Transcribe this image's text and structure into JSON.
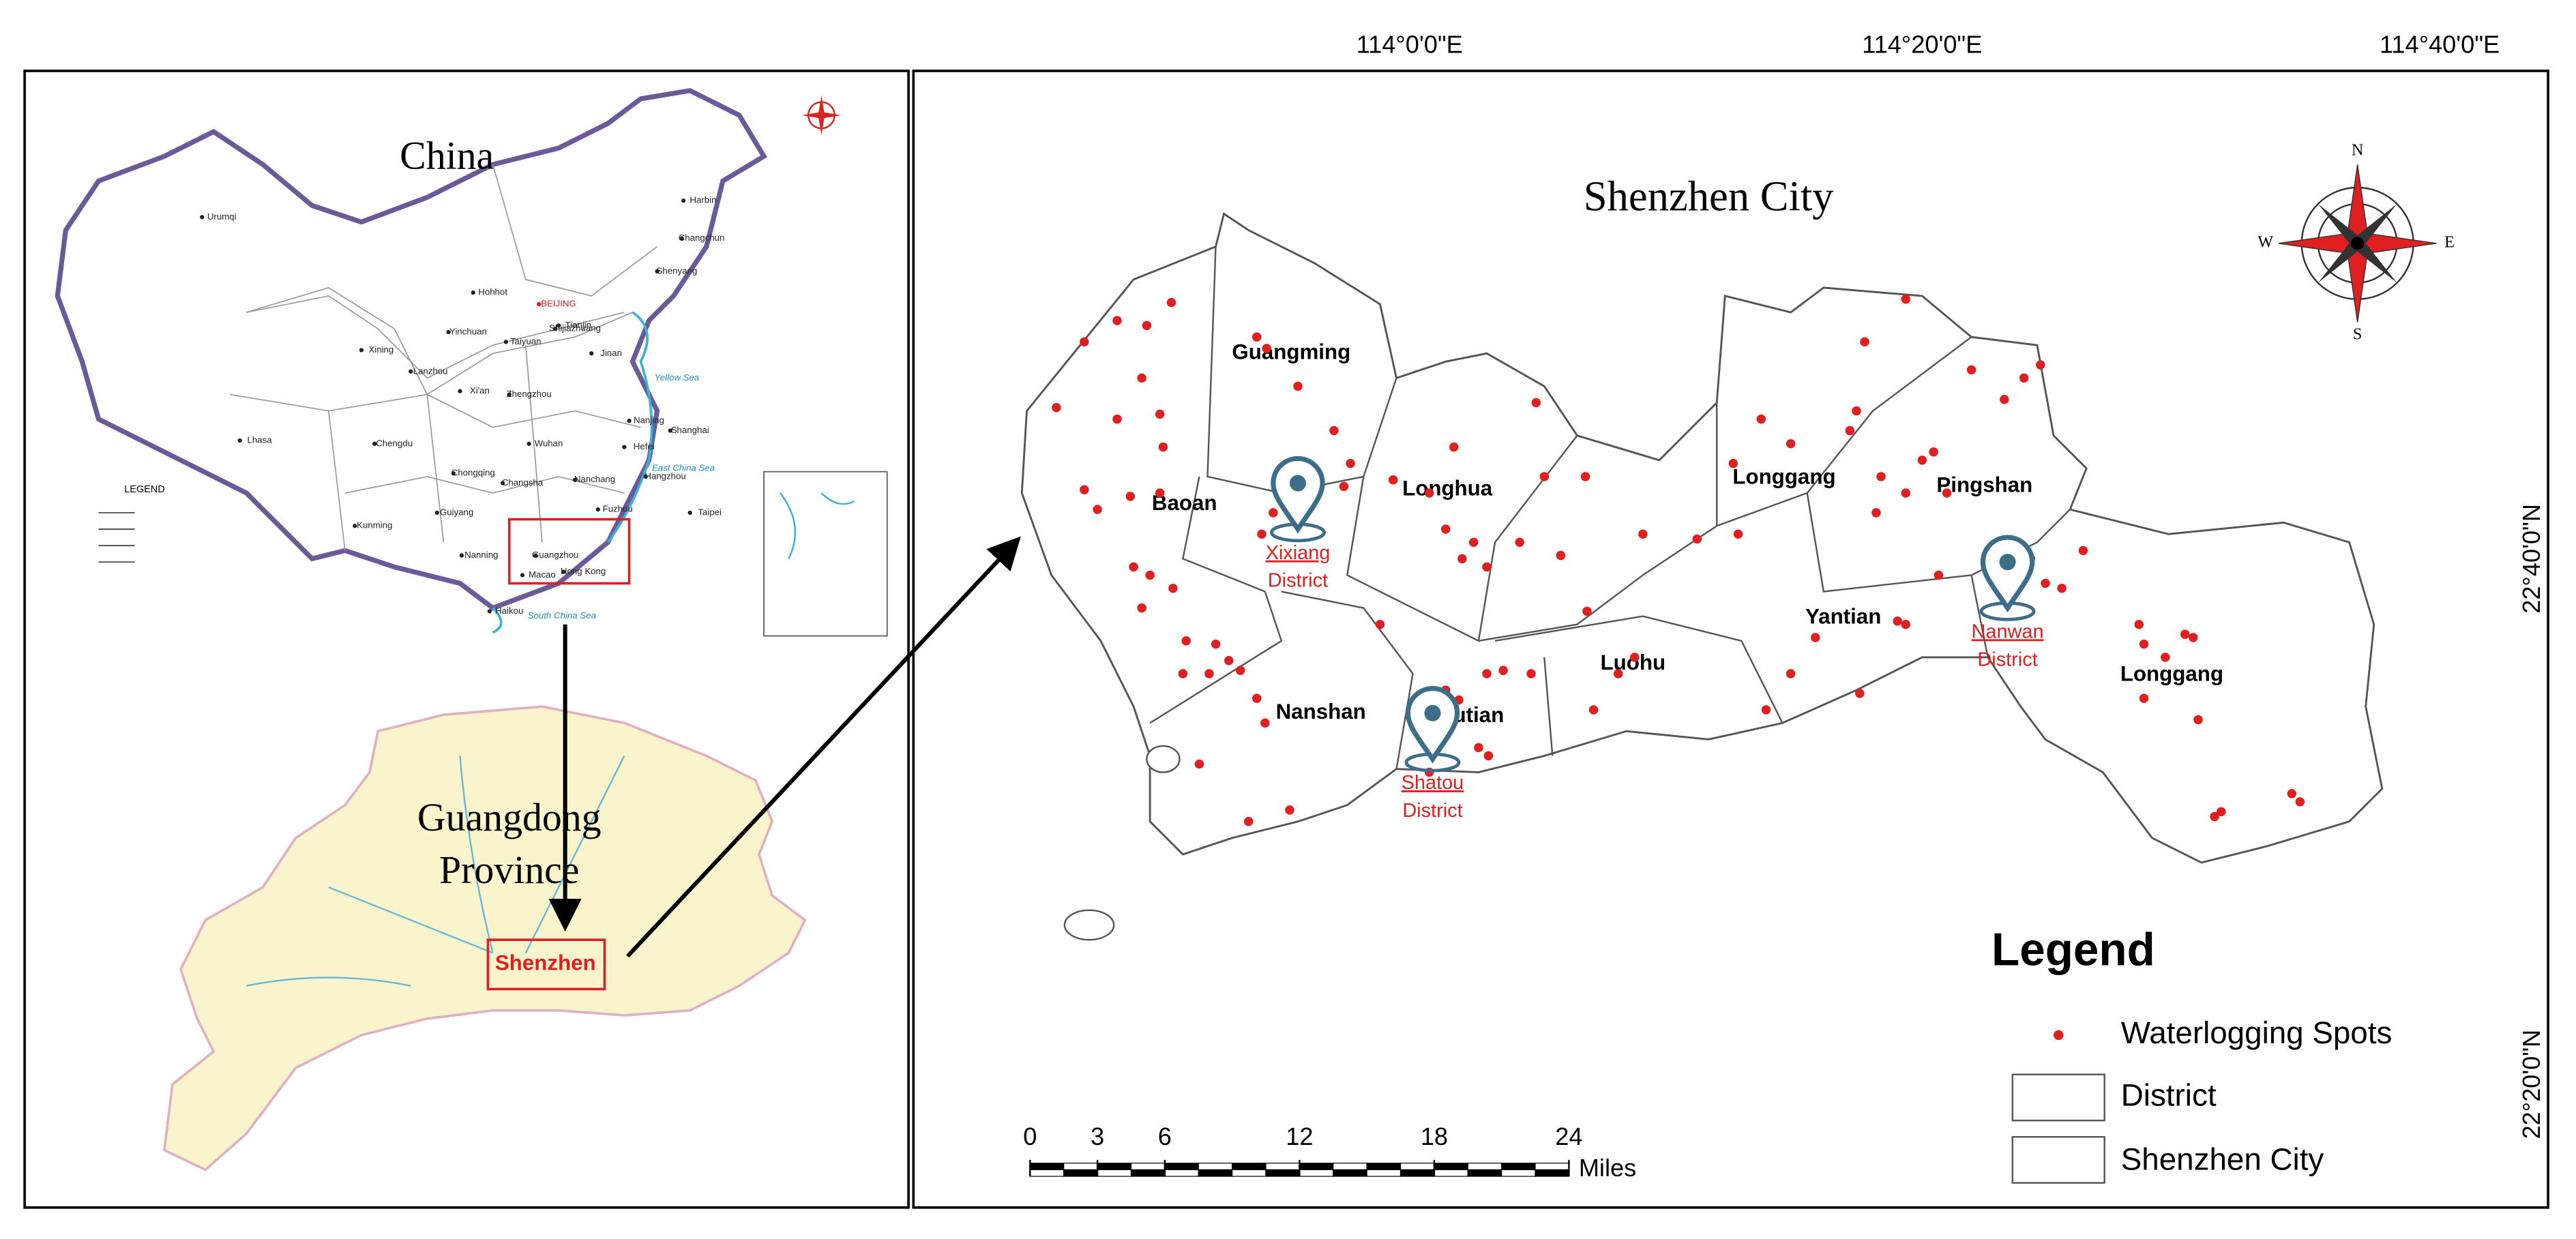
{
  "china_map": {
    "title": "China",
    "legend_title": "LEGEND",
    "labels": [
      "Harbin",
      "Changchun",
      "Shenyang",
      "BEIJING",
      "Tianjin",
      "Hohhot",
      "Taiyuan",
      "Shijiazhuang",
      "Jinan",
      "Yinchuan",
      "Lanzhou",
      "Xining",
      "Xi'an",
      "Zhengzhou",
      "Urumqi",
      "Lhasa",
      "Chengdu",
      "Chongqing",
      "Wuhan",
      "Nanjing",
      "Shanghai",
      "Hefei",
      "Hangzhou",
      "Changsha",
      "Nanchang",
      "Fuzhou",
      "Taipei",
      "Guiyang",
      "Kunming",
      "Nanning",
      "Guangzhou",
      "Hong Kong",
      "Macao",
      "Haikou",
      "Yellow Sea",
      "East China Sea",
      "South China Sea"
    ]
  },
  "guangdong_map": {
    "title_lines": [
      "Guangdong",
      "Province"
    ],
    "highlight": "Shenzhen"
  },
  "shenzhen_map": {
    "title": "Shenzhen City",
    "longitude_labels": [
      "114°0'0\"E",
      "114°20'0\"E",
      "114°40'0\"E"
    ],
    "latitude_labels": [
      "22°40'0\"N",
      "22°20'0\"N"
    ],
    "districts": [
      "Guangming",
      "Baoan",
      "Longhua",
      "Longgang",
      "Pingshan",
      "Yantian",
      "Luohu",
      "Futian",
      "Nanshan",
      "Longgang"
    ],
    "highlighted_districts": [
      [
        "Xixiang",
        "District"
      ],
      [
        "Shatou",
        "District"
      ],
      [
        "Nanwan",
        "District"
      ]
    ],
    "compass": [
      "N",
      "S",
      "E",
      "W"
    ],
    "legend": {
      "title": "Legend",
      "items": [
        "Waterlogging Spots",
        "District",
        "Shenzhen City"
      ]
    },
    "scale_bar": {
      "ticks": [
        0,
        3,
        6,
        12,
        18,
        24
      ],
      "unit": "Miles"
    }
  }
}
